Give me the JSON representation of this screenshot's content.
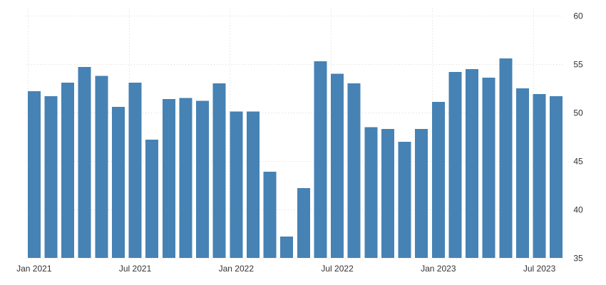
{
  "chart_data": {
    "type": "bar",
    "title": "",
    "xlabel": "",
    "ylabel": "",
    "ylim": [
      35,
      60
    ],
    "yticks": [
      35,
      40,
      45,
      50,
      55,
      60
    ],
    "y_axis_side": "right",
    "grid": true,
    "bar_color": "#4682b4",
    "categories": [
      "Jan 2021",
      "Feb 2021",
      "Mar 2021",
      "Apr 2021",
      "May 2021",
      "Jun 2021",
      "Jul 2021",
      "Aug 2021",
      "Sep 2021",
      "Oct 2021",
      "Nov 2021",
      "Dec 2021",
      "Jan 2022",
      "Feb 2022",
      "Mar 2022",
      "Apr 2022",
      "May 2022",
      "Jun 2022",
      "Jul 2022",
      "Aug 2022",
      "Sep 2022",
      "Oct 2022",
      "Nov 2022",
      "Dec 2022",
      "Jan 2023",
      "Feb 2023",
      "Mar 2023",
      "Apr 2023",
      "May 2023",
      "Jun 2023",
      "Jul 2023",
      "Aug 2023"
    ],
    "values": [
      52.2,
      51.7,
      53.1,
      54.7,
      53.8,
      50.6,
      53.1,
      47.2,
      51.4,
      51.5,
      51.2,
      53.0,
      50.1,
      50.1,
      43.9,
      37.2,
      42.2,
      55.3,
      54.0,
      53.0,
      48.5,
      48.3,
      47.0,
      48.3,
      51.1,
      54.2,
      54.5,
      53.6,
      55.6,
      52.5,
      51.9,
      51.7
    ],
    "xtick_labels": [
      "Jan 2021",
      "Jul 2021",
      "Jan 2022",
      "Jul 2022",
      "Jan 2023",
      "Jul 2023"
    ]
  }
}
